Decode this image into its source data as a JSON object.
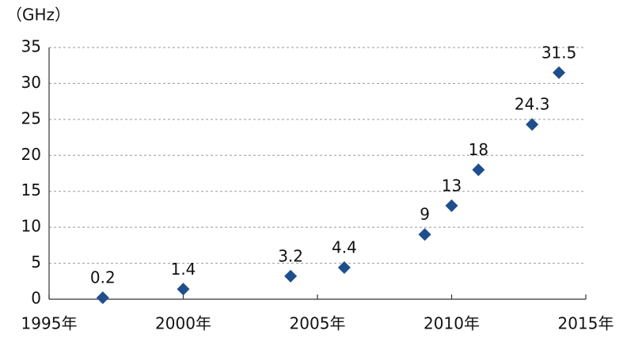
{
  "chart_data": {
    "type": "scatter",
    "y_label": "（GHz）",
    "x": [
      1997,
      2000,
      2004,
      2006,
      2009,
      2010,
      2011,
      2013,
      2014
    ],
    "values": [
      0.2,
      1.4,
      3.2,
      4.4,
      9,
      13,
      18,
      24.3,
      31.5
    ],
    "color": "#1f4e8c",
    "xlim": [
      1995,
      2015
    ],
    "xticks": [
      {
        "value": 1995,
        "label": "1995年"
      },
      {
        "value": 2000,
        "label": "2000年"
      },
      {
        "value": 2005,
        "label": "2005年"
      },
      {
        "value": 2010,
        "label": "2010年"
      },
      {
        "value": 2015,
        "label": "2015年"
      }
    ],
    "ylim": [
      0,
      35
    ],
    "yticks": [
      0,
      5,
      10,
      15,
      20,
      25,
      30,
      35
    ],
    "grid": true
  }
}
